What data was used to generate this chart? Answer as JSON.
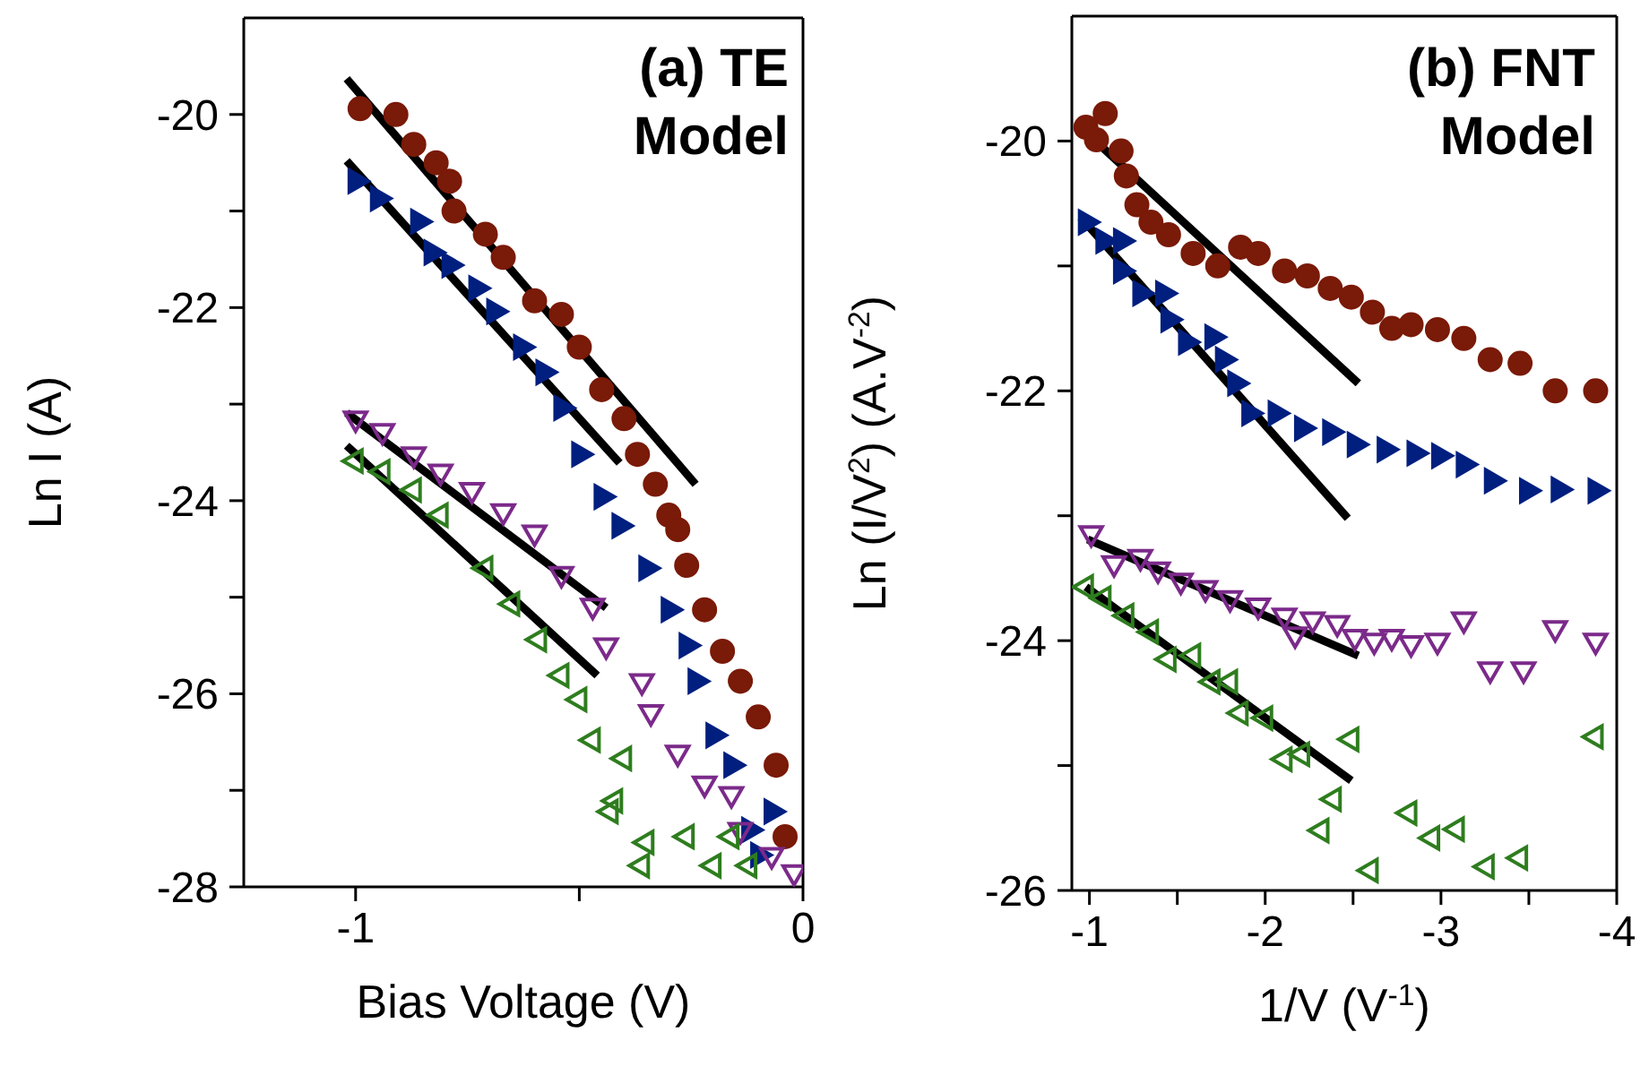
{
  "chart_data": [
    {
      "type": "scatter",
      "title": "(a) TE Model",
      "xlabel": "Bias Voltage (V)",
      "ylabel": "Ln I (A)",
      "xlim": [
        -1.25,
        0
      ],
      "ylim": [
        -28,
        -19
      ],
      "xticks": [
        -1,
        {
          "value": -0.5,
          "label": null
        },
        0
      ],
      "yticks": [
        -28,
        {
          "value": -27,
          "label": null
        },
        -26,
        {
          "value": -25,
          "label": null
        },
        -24,
        {
          "value": -23,
          "label": null
        },
        -22,
        {
          "value": -21,
          "label": null
        },
        -20
      ],
      "series": [
        {
          "type": "scatter",
          "marker": "circle",
          "color": "#7a1a08",
          "x": [
            -0.99,
            -0.91,
            -0.87,
            -0.82,
            -0.79,
            -0.78,
            -0.71,
            -0.67,
            -0.6,
            -0.54,
            -0.5,
            -0.45,
            -0.4,
            -0.37,
            -0.33,
            -0.3,
            -0.28,
            -0.26,
            -0.22,
            -0.18,
            -0.14,
            -0.1,
            -0.06,
            -0.04
          ],
          "values": [
            -19.94,
            -20.0,
            -20.31,
            -20.5,
            -20.69,
            -21.0,
            -21.24,
            -21.48,
            -21.93,
            -22.07,
            -22.41,
            -22.85,
            -23.15,
            -23.52,
            -23.83,
            -24.15,
            -24.3,
            -24.67,
            -25.13,
            -25.56,
            -25.87,
            -26.24,
            -26.74,
            -27.48
          ]
        },
        {
          "type": "scatter",
          "marker": "triangle",
          "color": "#001f7f",
          "x": [
            -1.0,
            -0.95,
            -0.86,
            -0.83,
            -0.79,
            -0.73,
            -0.69,
            -0.63,
            -0.58,
            -0.54,
            -0.5,
            -0.45,
            -0.41,
            -0.35,
            -0.3,
            -0.26,
            -0.24,
            -0.2,
            -0.16,
            -0.07,
            -0.12,
            -0.1
          ],
          "values": [
            -20.69,
            -20.87,
            -21.11,
            -21.43,
            -21.56,
            -21.8,
            -22.04,
            -22.41,
            -22.67,
            -23.04,
            -23.52,
            -23.96,
            -24.26,
            -24.7,
            -25.13,
            -25.5,
            -25.87,
            -26.43,
            -26.74,
            -27.22,
            -27.41,
            -27.67
          ]
        },
        {
          "type": "scatter",
          "marker": "triangle",
          "color": "#7b2a8a",
          "x": [
            -1.0,
            -0.94,
            -0.87,
            -0.81,
            -0.74,
            -0.67,
            -0.6,
            -0.54,
            -0.47,
            -0.44,
            -0.36,
            -0.34,
            -0.28,
            -0.22,
            -0.16,
            -0.14,
            -0.07,
            -0.02
          ],
          "values": [
            -23.15,
            -23.28,
            -23.52,
            -23.7,
            -23.89,
            -24.11,
            -24.33,
            -24.76,
            -25.09,
            -25.5,
            -25.87,
            -26.19,
            -26.61,
            -26.93,
            -27.04,
            -27.41,
            -27.67,
            -27.85
          ]
        },
        {
          "type": "scatter",
          "marker": "triangle",
          "color": "#2e7d1e",
          "x": [
            -1.0,
            -0.94,
            -0.87,
            -0.81,
            -0.71,
            -0.65,
            -0.59,
            -0.54,
            -0.5,
            -0.47,
            -0.4,
            -0.42,
            -0.43,
            -0.35,
            -0.36,
            -0.26,
            -0.2,
            -0.16,
            -0.12
          ],
          "values": [
            -23.59,
            -23.7,
            -23.89,
            -24.15,
            -24.7,
            -25.07,
            -25.44,
            -25.81,
            -26.06,
            -26.48,
            -26.67,
            -27.11,
            -27.22,
            -27.54,
            -27.78,
            -27.48,
            -27.78,
            -27.48,
            -27.78
          ]
        },
        {
          "type": "line",
          "color": "#000000",
          "x": [
            -1.02,
            -0.24
          ],
          "values": [
            -19.63,
            -23.83
          ]
        },
        {
          "type": "line",
          "color": "#000000",
          "x": [
            -1.02,
            -0.41
          ],
          "values": [
            -20.48,
            -23.61
          ]
        },
        {
          "type": "line",
          "color": "#000000",
          "x": [
            -1.02,
            -0.44
          ],
          "values": [
            -23.09,
            -25.11
          ]
        },
        {
          "type": "line",
          "color": "#000000",
          "x": [
            -1.02,
            -0.46
          ],
          "values": [
            -23.43,
            -25.81
          ]
        }
      ]
    },
    {
      "type": "scatter",
      "title": "(b) FNT Model",
      "xlabel": "1/V (V$^{-1}$)",
      "ylabel": "Ln (I/V$^{2}$) (A.V$^{-2}$)",
      "xlim": [
        -0.9,
        -4
      ],
      "ylim": [
        -26,
        -19
      ],
      "xticks": [
        -1,
        {
          "value": -1.5,
          "label": null
        },
        -2,
        {
          "value": -2.5,
          "label": null
        },
        -3,
        {
          "value": -3.5,
          "label": null
        },
        -4
      ],
      "yticks": [
        -26,
        {
          "value": -25,
          "label": null
        },
        -24,
        {
          "value": -23,
          "label": null
        },
        -22,
        {
          "value": -21,
          "label": null
        },
        -20
      ],
      "series": [
        {
          "type": "scatter",
          "marker": "circle",
          "color": "#7a1a08",
          "x": [
            -0.98,
            -1.09,
            -1.04,
            -1.18,
            -1.21,
            -1.27,
            -1.35,
            -1.45,
            -1.59,
            -1.73,
            -1.86,
            -1.96,
            -2.11,
            -2.24,
            -2.37,
            -2.49,
            -2.61,
            -2.72,
            -2.83,
            -2.98,
            -3.13,
            -3.28,
            -3.45,
            -3.65,
            -3.88
          ],
          "values": [
            -19.89,
            -19.78,
            -19.99,
            -20.08,
            -20.28,
            -20.51,
            -20.65,
            -20.75,
            -20.9,
            -21.0,
            -20.85,
            -20.9,
            -21.04,
            -21.08,
            -21.18,
            -21.25,
            -21.37,
            -21.5,
            -21.47,
            -21.51,
            -21.58,
            -21.75,
            -21.78,
            -22.0,
            -22.0
          ]
        },
        {
          "type": "scatter",
          "marker": "triangle",
          "color": "#001f7f",
          "x": [
            -0.98,
            -1.08,
            -1.18,
            -1.18,
            -1.29,
            -1.42,
            -1.45,
            -1.55,
            -1.7,
            -1.76,
            -1.83,
            -1.91,
            -2.06,
            -2.21,
            -2.37,
            -2.51,
            -2.68,
            -2.85,
            -2.99,
            -3.13,
            -3.29,
            -3.49,
            -3.67,
            -3.88
          ],
          "values": [
            -20.65,
            -20.8,
            -20.8,
            -21.04,
            -21.22,
            -21.22,
            -21.43,
            -21.61,
            -21.57,
            -21.75,
            -21.94,
            -22.18,
            -22.18,
            -22.3,
            -22.33,
            -22.43,
            -22.47,
            -22.5,
            -22.52,
            -22.59,
            -22.72,
            -22.8,
            -22.79,
            -22.8
          ]
        },
        {
          "type": "scatter",
          "marker": "triangle",
          "color": "#7b2a8a",
          "x": [
            -1.01,
            -1.14,
            -1.29,
            -1.39,
            -1.52,
            -1.66,
            -1.8,
            -1.96,
            -2.11,
            -2.17,
            -2.27,
            -2.41,
            -2.51,
            -2.62,
            -2.72,
            -2.83,
            -2.98,
            -3.13,
            -3.28,
            -3.47,
            -3.65,
            -3.88
          ],
          "values": [
            -23.14,
            -23.38,
            -23.33,
            -23.43,
            -23.52,
            -23.58,
            -23.66,
            -23.72,
            -23.8,
            -23.95,
            -23.83,
            -23.86,
            -23.97,
            -24.0,
            -23.97,
            -24.02,
            -24.0,
            -23.83,
            -24.23,
            -24.23,
            -23.9,
            -24.0
          ]
        },
        {
          "type": "scatter",
          "marker": "triangle",
          "color": "#2e7d1e",
          "x": [
            -0.98,
            -1.08,
            -1.21,
            -1.35,
            -1.45,
            -1.59,
            -1.7,
            -1.8,
            -1.86,
            -2.0,
            -2.11,
            -2.21,
            -2.49,
            -2.39,
            -2.32,
            -2.6,
            -2.82,
            -2.95,
            -3.09,
            -3.26,
            -3.45,
            -3.88
          ],
          "values": [
            -23.57,
            -23.66,
            -23.8,
            -23.93,
            -24.15,
            -24.12,
            -24.33,
            -24.33,
            -24.58,
            -24.62,
            -24.95,
            -24.91,
            -24.79,
            -25.27,
            -25.52,
            -25.84,
            -25.38,
            -25.58,
            -25.51,
            -25.81,
            -25.74,
            -24.77
          ]
        },
        {
          "type": "line",
          "color": "#000000",
          "x": [
            -0.95,
            -2.53
          ],
          "values": [
            -19.89,
            -21.94
          ]
        },
        {
          "type": "line",
          "color": "#000000",
          "x": [
            -0.95,
            -2.47
          ],
          "values": [
            -20.61,
            -23.02
          ]
        },
        {
          "type": "line",
          "color": "#000000",
          "x": [
            -0.99,
            -2.53
          ],
          "values": [
            -23.19,
            -24.12
          ]
        },
        {
          "type": "line",
          "color": "#000000",
          "x": [
            -0.98,
            -2.49
          ],
          "values": [
            -23.57,
            -25.12
          ]
        }
      ]
    }
  ]
}
